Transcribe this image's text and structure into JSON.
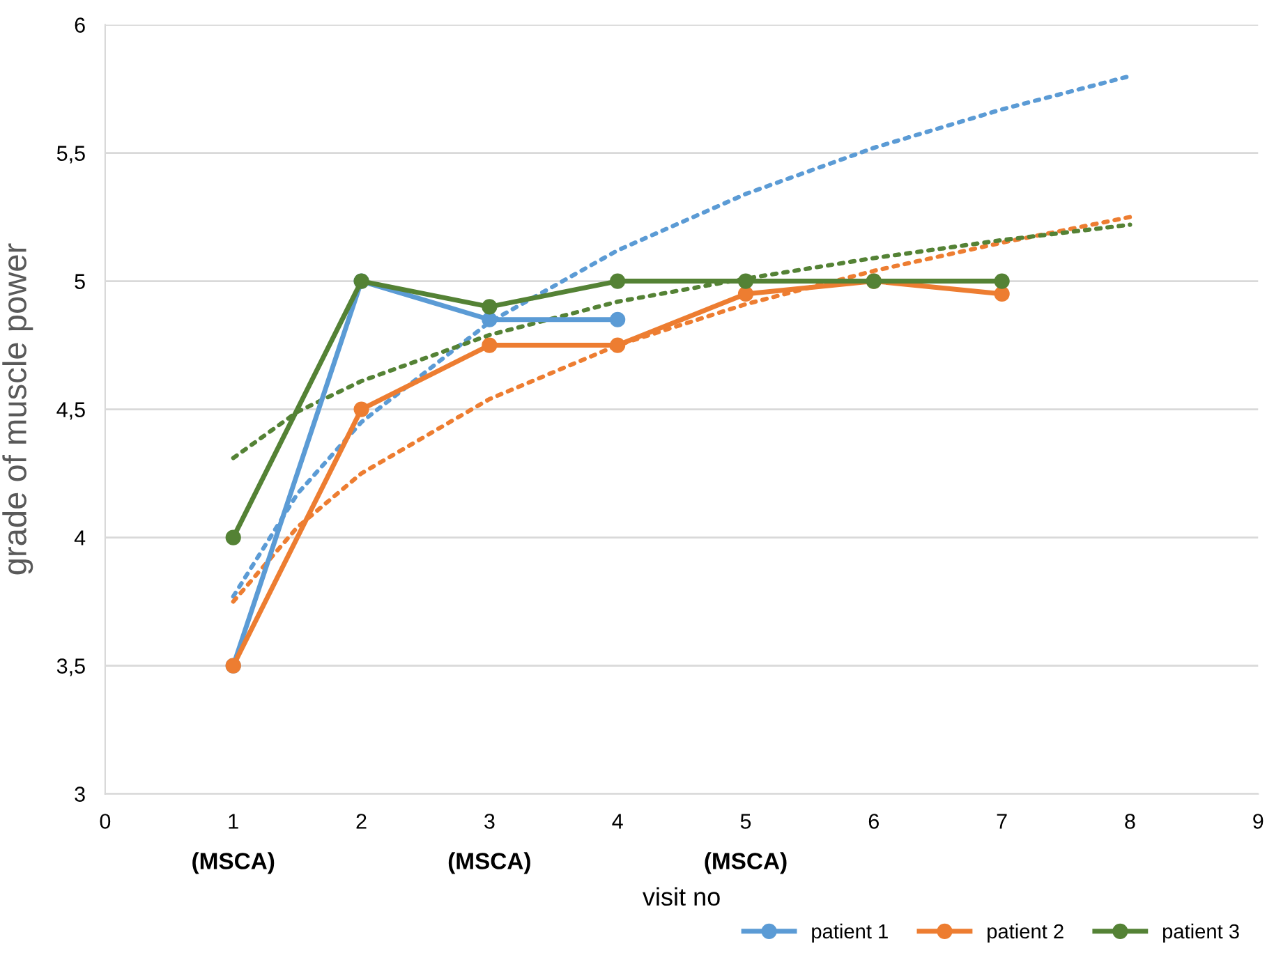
{
  "chart_data": {
    "type": "line",
    "xlabel": "visit no",
    "ylabel": "grade of muscle power",
    "xlim": [
      0,
      9
    ],
    "xticks": [
      0,
      1,
      2,
      3,
      4,
      5,
      6,
      7,
      8,
      9
    ],
    "ylim": [
      3,
      6
    ],
    "yticks": [
      {
        "value": 3,
        "label": "3"
      },
      {
        "value": 3.5,
        "label": "3,5"
      },
      {
        "value": 4,
        "label": "4"
      },
      {
        "value": 4.5,
        "label": "4,5"
      },
      {
        "value": 5,
        "label": "5"
      },
      {
        "value": 5.5,
        "label": "5,5"
      },
      {
        "value": 6,
        "label": "6"
      }
    ],
    "grid": "y",
    "legend": "bottom right",
    "marker": "circle",
    "line_style": "solid",
    "annotations": [
      "(MSCA)",
      "(MSCA)",
      "(MSCA)"
    ],
    "series": [
      {
        "name": "patient 1",
        "color": "#5b9bd5",
        "x": [
          1,
          2,
          3,
          4
        ],
        "values": [
          3.5,
          5,
          4.85,
          4.85
        ]
      },
      {
        "name": "patient 2",
        "color": "#ed7d31",
        "x": [
          1,
          2,
          3,
          4,
          5,
          6,
          7
        ],
        "values": [
          3.5,
          4.5,
          4.75,
          4.75,
          4.95,
          5.0,
          4.95
        ]
      },
      {
        "name": "patient 3",
        "color": "#548235",
        "x": [
          1,
          2,
          3,
          4,
          5,
          6,
          7
        ],
        "values": [
          4,
          5,
          4.9,
          5,
          5,
          5,
          5
        ]
      },
      {
        "color": "#5b9bd5",
        "marker": "none",
        "line_style": "dotted",
        "x": [
          1,
          1.5,
          2,
          3,
          4,
          5,
          6,
          7,
          8
        ],
        "values": [
          3.77,
          4.17,
          4.45,
          4.84,
          5.12,
          5.34,
          5.52,
          5.67,
          5.8
        ]
      },
      {
        "color": "#ed7d31",
        "marker": "none",
        "line_style": "dotted",
        "x": [
          1,
          1.5,
          2,
          3,
          4,
          5,
          6,
          7,
          8
        ],
        "values": [
          3.75,
          4.04,
          4.25,
          4.54,
          4.75,
          4.91,
          5.04,
          5.15,
          5.25
        ]
      },
      {
        "color": "#548235",
        "marker": "none",
        "line_style": "dotted",
        "x": [
          1,
          1.5,
          2,
          3,
          4,
          5,
          6,
          7,
          8
        ],
        "values": [
          4.31,
          4.49,
          4.61,
          4.79,
          4.92,
          5.01,
          5.09,
          5.16,
          5.22
        ]
      }
    ]
  }
}
